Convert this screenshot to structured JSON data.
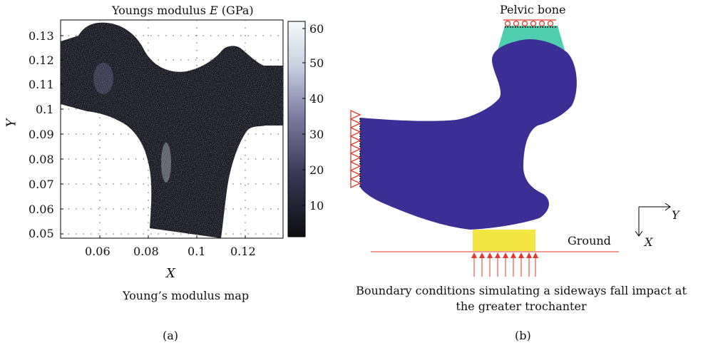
{
  "panel_a": {
    "title_prefix": "Youngs modulus ",
    "title_symbol": "E",
    "title_unit": " (GPa)",
    "x_axis_label": "X",
    "y_axis_label": "Y",
    "x_ticks": [
      "0.06",
      "0.08",
      "0.1",
      "0.12"
    ],
    "y_ticks": [
      "0.13",
      "0.12",
      "0.11",
      "0.1",
      "0.09",
      "0.08",
      "0.07",
      "0.06",
      "0.05"
    ],
    "colorbar_ticks": [
      "60",
      "50",
      "40",
      "30",
      "20",
      "10"
    ],
    "caption": "Young’s modulus map",
    "panel_label": "(a)",
    "colormap": [
      "#0d0d12",
      "#3a3a58",
      "#7a7aa0",
      "#c9d2e2",
      "#f4fbfb"
    ]
  },
  "panel_b": {
    "pelvic_label": "Pelvic bone",
    "ground_label": "Ground",
    "axis_y_label": "Y",
    "axis_x_label": "X",
    "caption_line1": "Boundary conditions simulating a sideways fall impact at",
    "caption_line2": "the greater trochanter",
    "panel_label": "(b)",
    "colors": {
      "bone": "#3b2f96",
      "pelvic": "#4fcfb0",
      "ground_block": "#f4e642",
      "constraints": "#e23a2a"
    }
  }
}
